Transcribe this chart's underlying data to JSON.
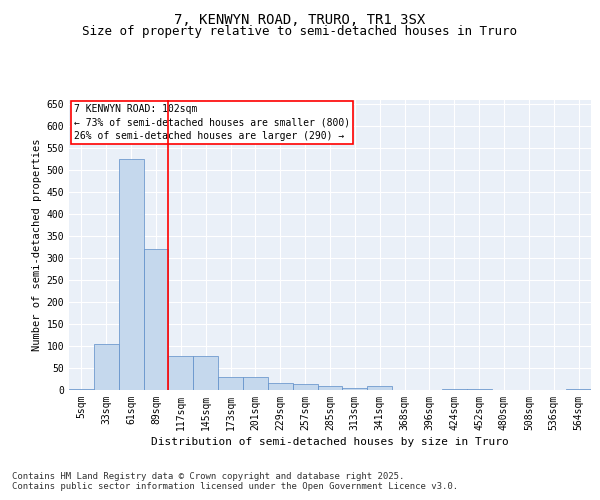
{
  "title": "7, KENWYN ROAD, TRURO, TR1 3SX",
  "subtitle": "Size of property relative to semi-detached houses in Truro",
  "xlabel": "Distribution of semi-detached houses by size in Truro",
  "ylabel": "Number of semi-detached properties",
  "annotation_line1": "7 KENWYN ROAD: 102sqm",
  "annotation_line2": "← 73% of semi-detached houses are smaller (800)",
  "annotation_line3": "26% of semi-detached houses are larger (290) →",
  "footer_line1": "Contains HM Land Registry data © Crown copyright and database right 2025.",
  "footer_line2": "Contains public sector information licensed under the Open Government Licence v3.0.",
  "bar_labels": [
    "5sqm",
    "33sqm",
    "61sqm",
    "89sqm",
    "117sqm",
    "145sqm",
    "173sqm",
    "201sqm",
    "229sqm",
    "257sqm",
    "285sqm",
    "313sqm",
    "341sqm",
    "368sqm",
    "396sqm",
    "424sqm",
    "452sqm",
    "480sqm",
    "508sqm",
    "536sqm",
    "564sqm"
  ],
  "bar_values": [
    3,
    105,
    525,
    320,
    78,
    78,
    30,
    30,
    16,
    14,
    10,
    5,
    8,
    0,
    0,
    3,
    2,
    0,
    0,
    0,
    3
  ],
  "bar_color": "#c5d8ed",
  "bar_edge_color": "#5b8cc8",
  "reference_line_color": "red",
  "reference_line_x": 3.5,
  "ylim": [
    0,
    660
  ],
  "yticks": [
    0,
    50,
    100,
    150,
    200,
    250,
    300,
    350,
    400,
    450,
    500,
    550,
    600,
    650
  ],
  "annotation_box_color": "red",
  "background_color": "#eaf0f8",
  "title_fontsize": 10,
  "subtitle_fontsize": 9,
  "xlabel_fontsize": 8,
  "ylabel_fontsize": 7.5,
  "tick_fontsize": 7,
  "annotation_fontsize": 7,
  "footer_fontsize": 6.5
}
